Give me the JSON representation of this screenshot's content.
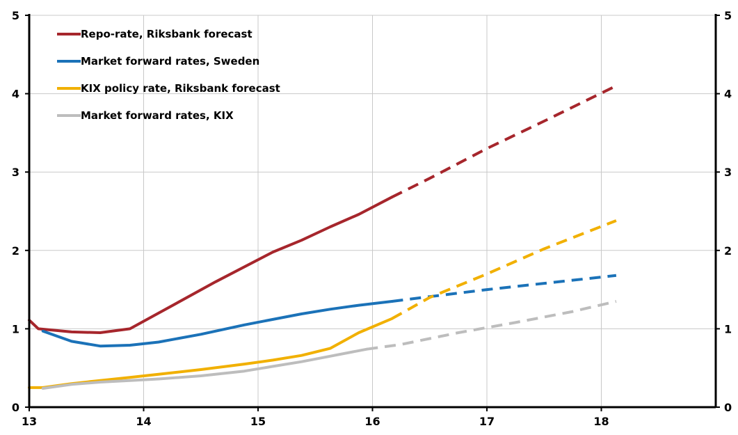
{
  "chart_data": {
    "type": "line",
    "xlim": [
      13,
      19
    ],
    "ylim": [
      0,
      5
    ],
    "x_ticks": [
      13,
      14,
      15,
      16,
      17,
      18
    ],
    "y_ticks": [
      0,
      1,
      2,
      3,
      4,
      5
    ],
    "grid": true,
    "legend_placement": "top-left",
    "series": [
      {
        "name": "Repo-rate, Riksbank forecast",
        "color": "#A6262C",
        "solid": [
          [
            13.0,
            1.11
          ],
          [
            13.08,
            1.0
          ],
          [
            13.37,
            0.96
          ],
          [
            13.62,
            0.95
          ],
          [
            13.88,
            1.0
          ],
          [
            14.13,
            1.2
          ],
          [
            14.63,
            1.6
          ],
          [
            15.13,
            1.98
          ],
          [
            15.38,
            2.13
          ],
          [
            15.63,
            2.3
          ],
          [
            15.88,
            2.46
          ],
          [
            16.17,
            2.68
          ]
        ],
        "dashed": [
          [
            16.17,
            2.68
          ],
          [
            16.5,
            2.92
          ],
          [
            17.0,
            3.3
          ],
          [
            17.5,
            3.65
          ],
          [
            18.13,
            4.1
          ]
        ]
      },
      {
        "name": "Market forward rates, Sweden",
        "color": "#1B72B8",
        "solid": [
          [
            13.12,
            0.97
          ],
          [
            13.37,
            0.84
          ],
          [
            13.62,
            0.78
          ],
          [
            13.88,
            0.79
          ],
          [
            14.13,
            0.83
          ],
          [
            14.5,
            0.93
          ],
          [
            14.88,
            1.05
          ],
          [
            15.13,
            1.12
          ],
          [
            15.38,
            1.19
          ],
          [
            15.63,
            1.25
          ],
          [
            15.88,
            1.3
          ],
          [
            16.17,
            1.35
          ]
        ],
        "dashed": [
          [
            16.17,
            1.35
          ],
          [
            16.5,
            1.41
          ],
          [
            17.0,
            1.5
          ],
          [
            17.5,
            1.58
          ],
          [
            18.13,
            1.68
          ]
        ]
      },
      {
        "name": "KIX policy rate, Riksbank forecast",
        "color": "#F1B000",
        "solid": [
          [
            13.0,
            0.25
          ],
          [
            13.12,
            0.25
          ],
          [
            13.37,
            0.3
          ],
          [
            13.62,
            0.34
          ],
          [
            13.88,
            0.38
          ],
          [
            14.13,
            0.42
          ],
          [
            14.5,
            0.48
          ],
          [
            14.88,
            0.55
          ],
          [
            15.13,
            0.6
          ],
          [
            15.38,
            0.66
          ],
          [
            15.63,
            0.75
          ],
          [
            15.88,
            0.95
          ],
          [
            16.17,
            1.13
          ]
        ],
        "dashed": [
          [
            16.17,
            1.13
          ],
          [
            16.5,
            1.4
          ],
          [
            17.0,
            1.7
          ],
          [
            17.5,
            2.02
          ],
          [
            18.13,
            2.38
          ]
        ]
      },
      {
        "name": "Market forward rates, KIX",
        "color": "#BDBDBD",
        "solid": [
          [
            13.12,
            0.24
          ],
          [
            13.37,
            0.29
          ],
          [
            13.62,
            0.32
          ],
          [
            13.88,
            0.34
          ],
          [
            14.13,
            0.36
          ],
          [
            14.5,
            0.4
          ],
          [
            14.88,
            0.46
          ],
          [
            15.13,
            0.52
          ],
          [
            15.38,
            0.58
          ],
          [
            15.63,
            0.65
          ],
          [
            15.95,
            0.74
          ]
        ],
        "dashed": [
          [
            15.95,
            0.74
          ],
          [
            16.25,
            0.8
          ],
          [
            16.75,
            0.95
          ],
          [
            17.25,
            1.08
          ],
          [
            17.75,
            1.22
          ],
          [
            18.13,
            1.35
          ]
        ]
      }
    ]
  }
}
